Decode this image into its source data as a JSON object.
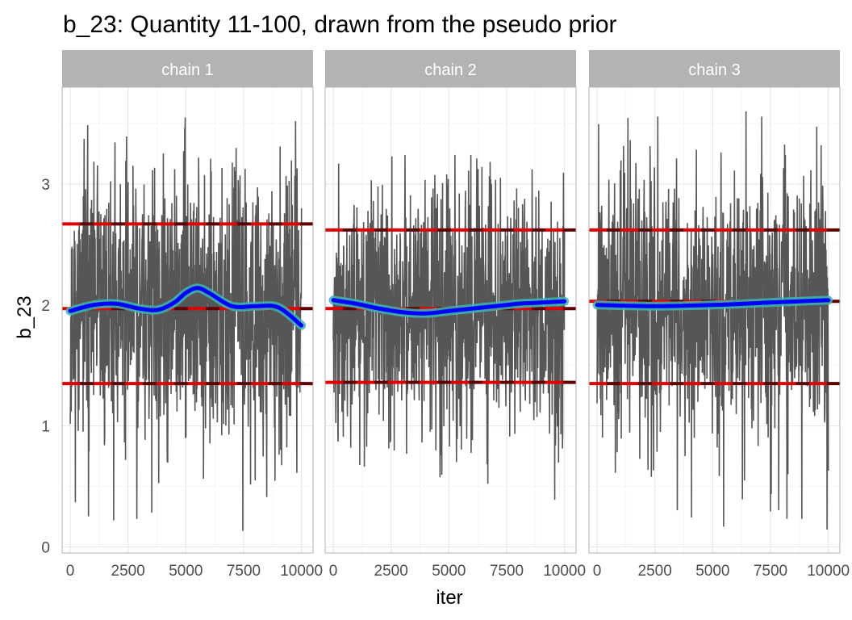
{
  "chart_data": {
    "type": "line",
    "title": "b_23: Quantity 11-100, drawn from the pseudo prior",
    "xlabel": "iter",
    "ylabel": "b_23",
    "xlim": [
      -350,
      10500
    ],
    "ylim": [
      -0.05,
      3.8
    ],
    "x_ticks": [
      0,
      2500,
      5000,
      7500,
      10000
    ],
    "x_tick_labels": [
      "0",
      "2500",
      "5000",
      "7500",
      "10000"
    ],
    "y_ticks": [
      0,
      1,
      2,
      3
    ],
    "y_tick_labels": [
      "0",
      "1",
      "2",
      "3"
    ],
    "grid": true,
    "legend": "none",
    "colors": {
      "trace": "#4d4d4d",
      "smooth": "#0000ff",
      "smooth_band": "#3cb4b4",
      "quantile_line": "#e00000",
      "quantile_dash": "#600000",
      "strip_fill": "#b3b3b3",
      "panel_border": "#b3b3b3",
      "grid": "#e6e6e6"
    },
    "panels": [
      {
        "strip": "chain 1",
        "trace_seed": 11,
        "trace_center": 1.97,
        "trace_spread": 0.52,
        "trace_min": 0.12,
        "trace_max": 3.57,
        "reference_lines": {
          "mean": 1.97,
          "lower": 1.35,
          "upper": 2.67
        },
        "smooth": {
          "x": [
            0,
            1000,
            2000,
            3000,
            3800,
            4500,
            5000,
            5500,
            6000,
            7000,
            8000,
            9000,
            10000
          ],
          "y": [
            1.95,
            2.0,
            2.01,
            1.97,
            1.96,
            2.02,
            2.1,
            2.14,
            2.1,
            1.99,
            1.99,
            1.98,
            1.83
          ]
        }
      },
      {
        "strip": "chain 2",
        "trace_seed": 23,
        "trace_center": 1.97,
        "trace_spread": 0.5,
        "trace_min": 0.36,
        "trace_max": 3.24,
        "reference_lines": {
          "mean": 1.97,
          "lower": 1.36,
          "upper": 2.62
        },
        "smooth": {
          "x": [
            0,
            1000,
            2000,
            3000,
            4000,
            5000,
            6000,
            7000,
            8000,
            9000,
            10000
          ],
          "y": [
            2.04,
            2.01,
            1.97,
            1.94,
            1.93,
            1.95,
            1.97,
            1.99,
            2.01,
            2.02,
            2.03
          ]
        }
      },
      {
        "strip": "chain 3",
        "trace_seed": 37,
        "trace_center": 2.02,
        "trace_spread": 0.52,
        "trace_min": 0.14,
        "trace_max": 3.63,
        "reference_lines": {
          "mean": 2.03,
          "lower": 1.35,
          "upper": 2.62
        },
        "smooth": {
          "x": [
            0,
            2500,
            5000,
            7500,
            10000
          ],
          "y": [
            2.0,
            1.99,
            2.0,
            2.02,
            2.04
          ]
        }
      }
    ]
  }
}
